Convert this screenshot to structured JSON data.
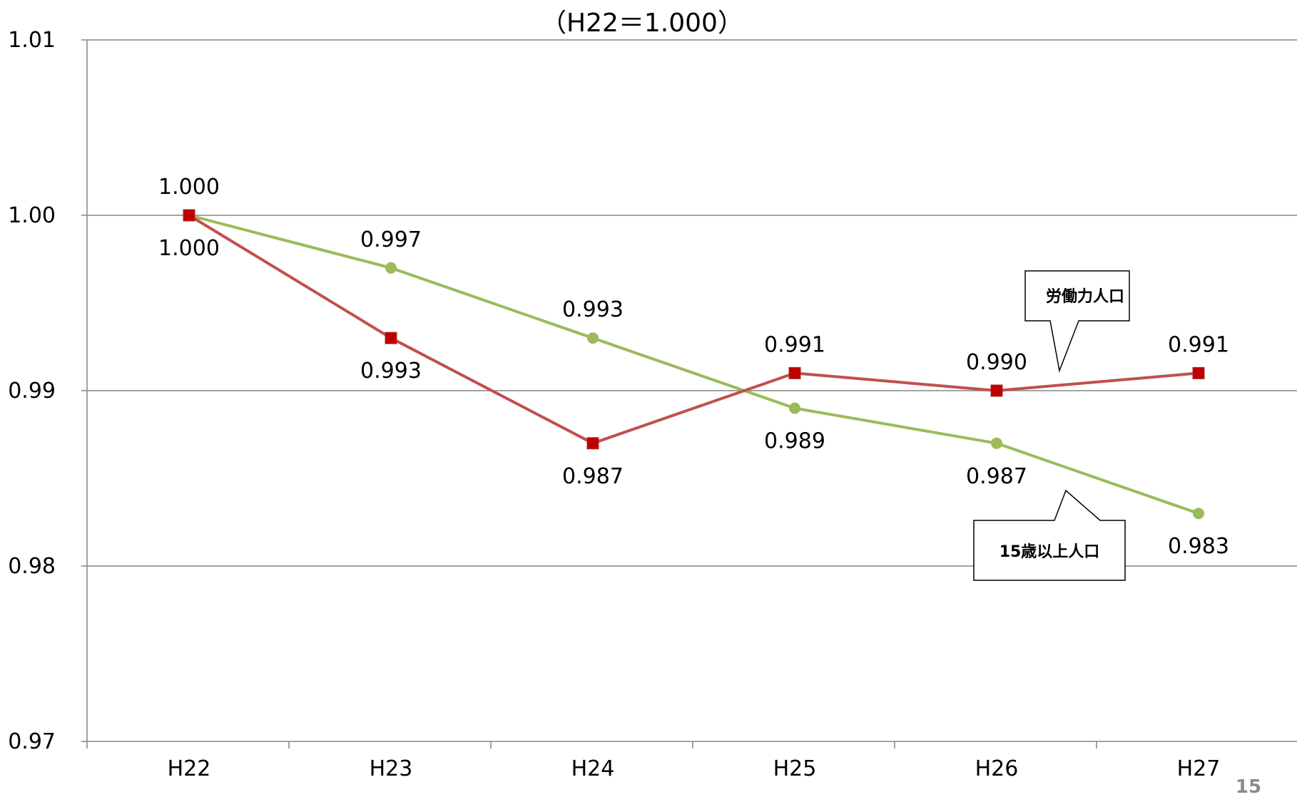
{
  "chart_data": {
    "type": "line",
    "title": "（H22＝1.000）",
    "categories": [
      "H22",
      "H23",
      "H24",
      "H25",
      "H26",
      "H27"
    ],
    "ylim": [
      0.97,
      1.01
    ],
    "yticks": [
      "0.97",
      "0.98",
      "0.99",
      "1.00",
      "1.01"
    ],
    "grid": true,
    "series": [
      {
        "name": "労働力人口",
        "color": "#c0504d",
        "marker": "square",
        "marker_color": "#c00000",
        "values": [
          1.0,
          0.993,
          0.987,
          0.991,
          0.99,
          0.991
        ],
        "labels": [
          "1.000",
          "0.993",
          "0.987",
          "0.991",
          "0.990",
          "0.991"
        ]
      },
      {
        "name": "15歳以上人口",
        "color": "#9bbb59",
        "marker": "circle",
        "marker_color": "#9bbb59",
        "values": [
          1.0,
          0.997,
          0.993,
          0.989,
          0.987,
          0.983
        ],
        "labels": [
          "1.000",
          "0.997",
          "0.993",
          "0.989",
          "0.987",
          "0.983"
        ]
      }
    ]
  },
  "page_number": "15"
}
